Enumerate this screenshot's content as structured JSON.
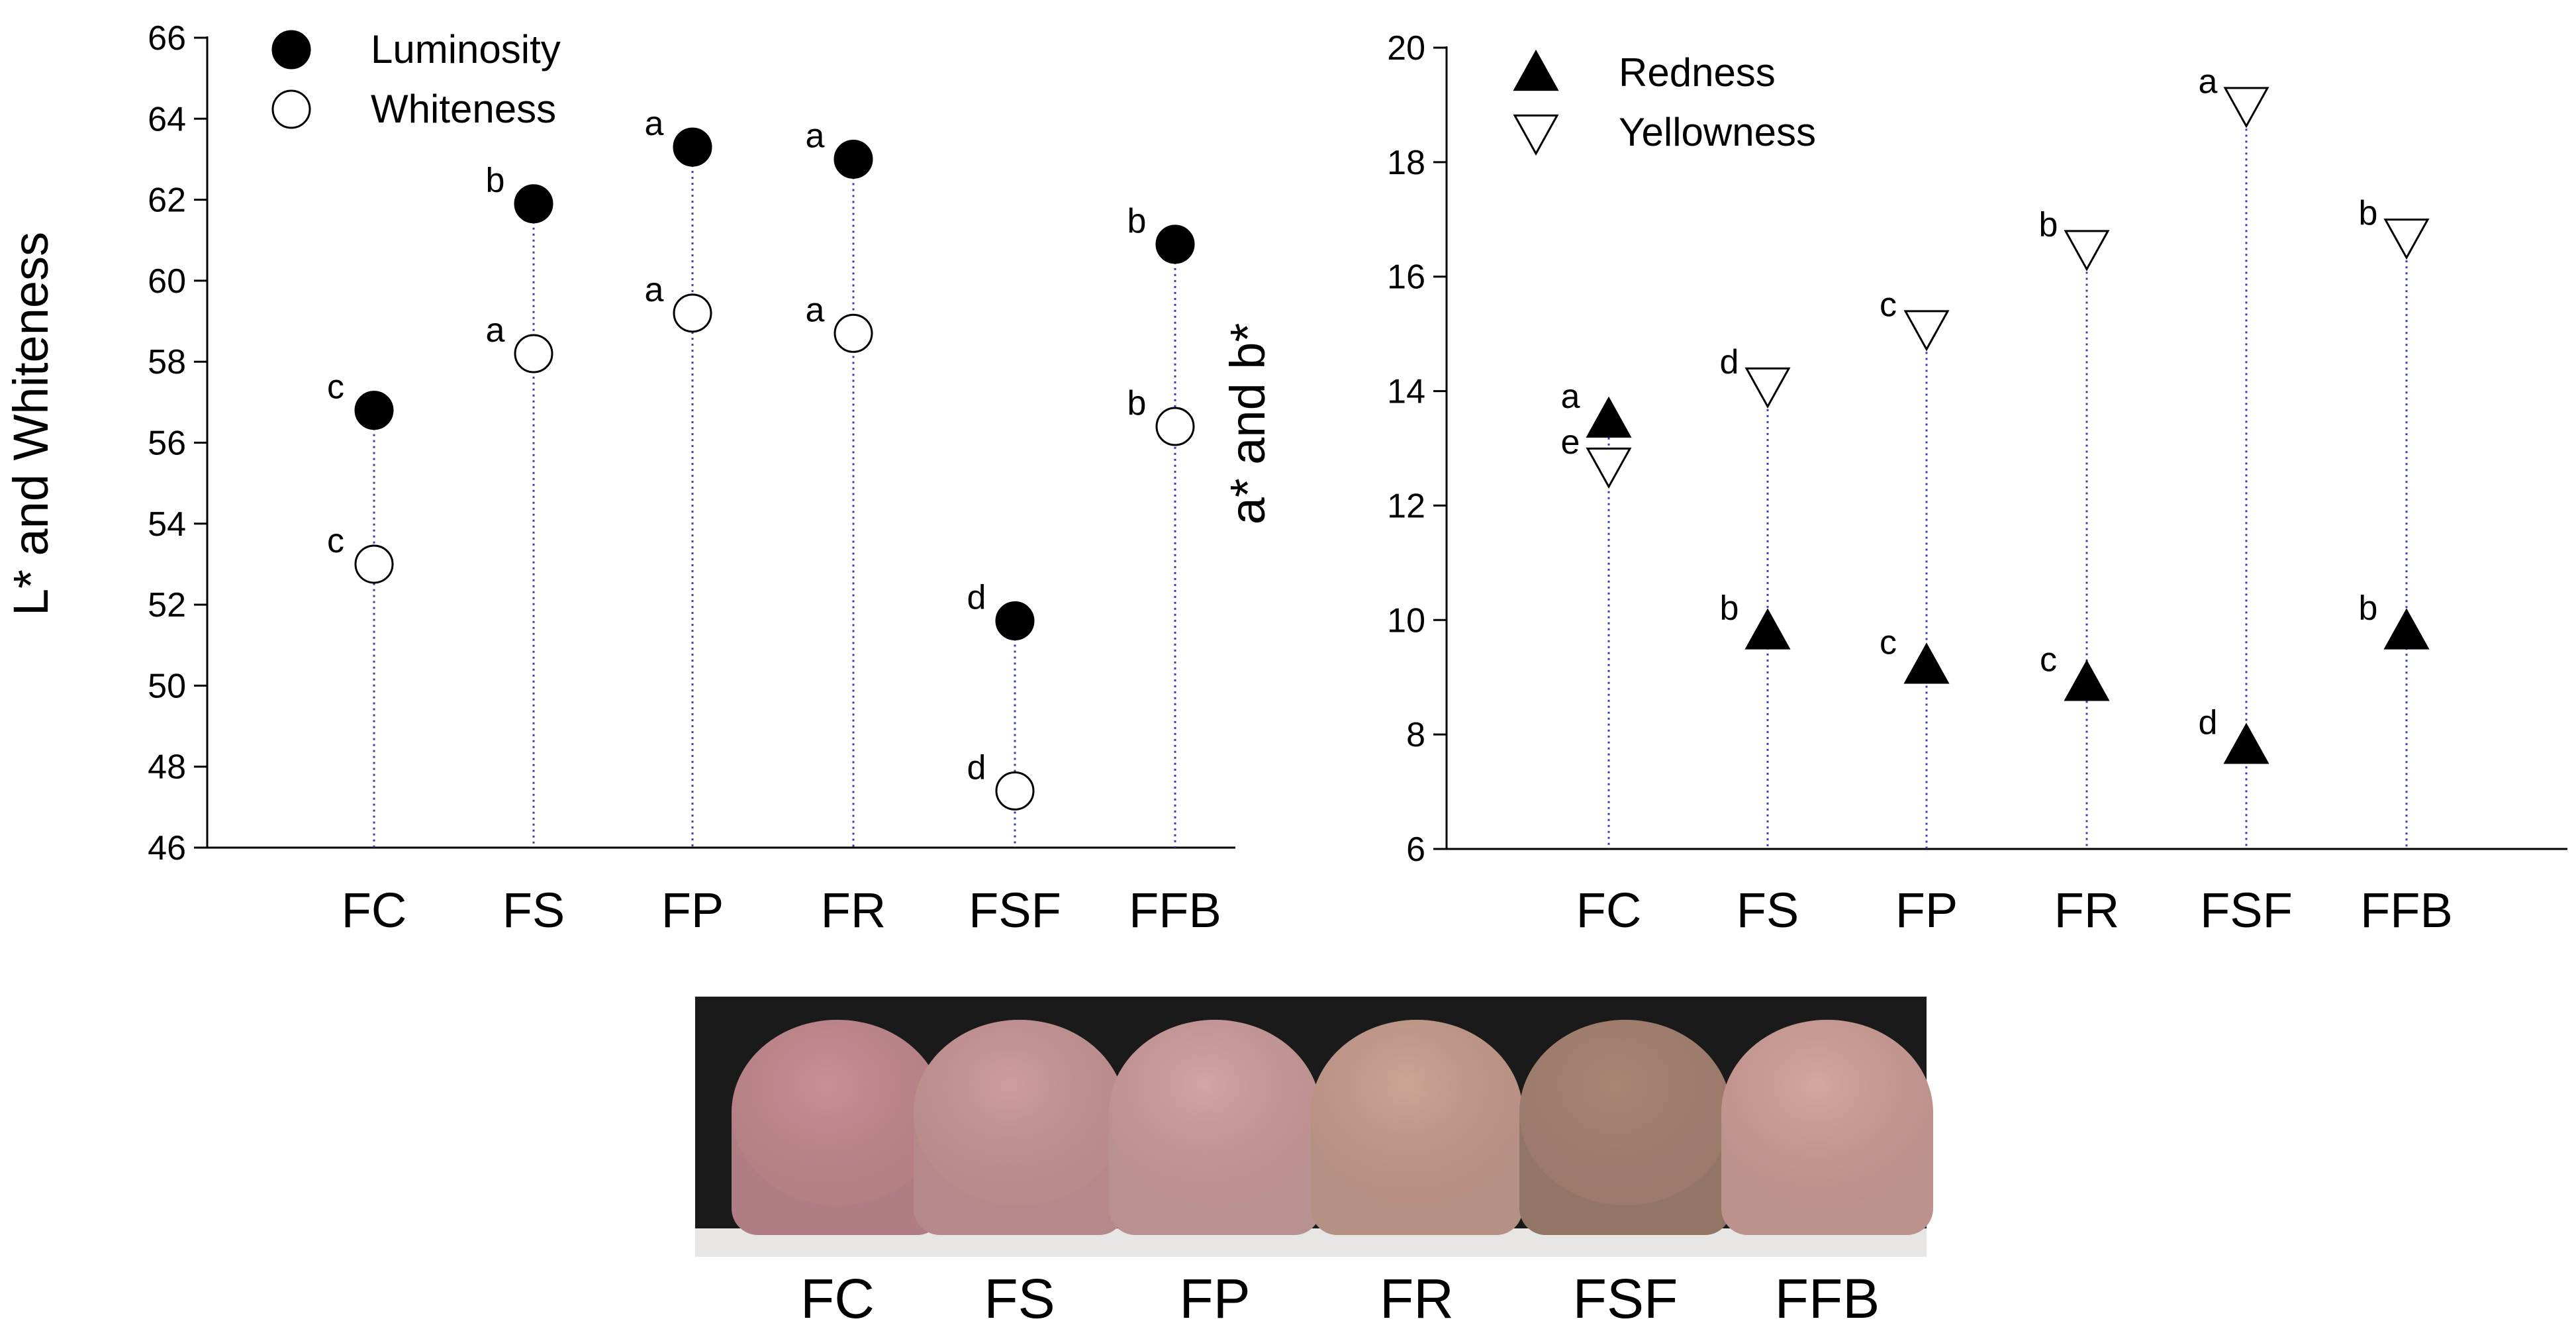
{
  "chart_data": [
    {
      "type": "scatter",
      "ylabel": "L* and Whiteness",
      "ylim": [
        46,
        66
      ],
      "yticks": [
        46,
        48,
        50,
        52,
        54,
        56,
        58,
        60,
        62,
        64,
        66
      ],
      "categories": [
        "FC",
        "FS",
        "FP",
        "FR",
        "FSF",
        "FFB"
      ],
      "legend_position": "top-left",
      "series": [
        {
          "name": "Luminosity",
          "marker": "filled-circle",
          "values": [
            56.8,
            61.9,
            63.3,
            63.0,
            51.6,
            60.9
          ],
          "labels": [
            "c",
            "b",
            "a",
            "a",
            "d",
            "b"
          ]
        },
        {
          "name": "Whiteness",
          "marker": "open-circle",
          "values": [
            53.0,
            58.2,
            59.2,
            58.7,
            47.4,
            56.4
          ],
          "labels": [
            "c",
            "a",
            "a",
            "a",
            "d",
            "b"
          ]
        }
      ]
    },
    {
      "type": "scatter",
      "ylabel": "a* and b*",
      "ylim": [
        6,
        20
      ],
      "yticks": [
        6,
        8,
        10,
        12,
        14,
        16,
        18,
        20
      ],
      "categories": [
        "FC",
        "FS",
        "FP",
        "FR",
        "FSF",
        "FFB"
      ],
      "legend_position": "top-left",
      "series": [
        {
          "name": "Redness",
          "marker": "filled-triangle-up",
          "values": [
            13.5,
            9.8,
            9.2,
            8.9,
            7.8,
            9.8
          ],
          "labels": [
            "a",
            "b",
            "c",
            "c",
            "d",
            "b"
          ]
        },
        {
          "name": "Yellowness",
          "marker": "open-triangle-down",
          "values": [
            12.7,
            14.1,
            15.1,
            16.5,
            19.0,
            16.7
          ],
          "labels": [
            "e",
            "d",
            "c",
            "b",
            "a",
            "b"
          ]
        }
      ]
    }
  ],
  "photo": {
    "labels": [
      "FC",
      "FS",
      "FP",
      "FR",
      "FSF",
      "FFB"
    ],
    "colors": [
      "#c98f97",
      "#cf9d9f",
      "#d3a5a5",
      "#cda595",
      "#a88674",
      "#d6a7a1"
    ]
  },
  "colors": {
    "marker": "#000000",
    "stem": "#3a3ab5",
    "axis": "#000000"
  }
}
